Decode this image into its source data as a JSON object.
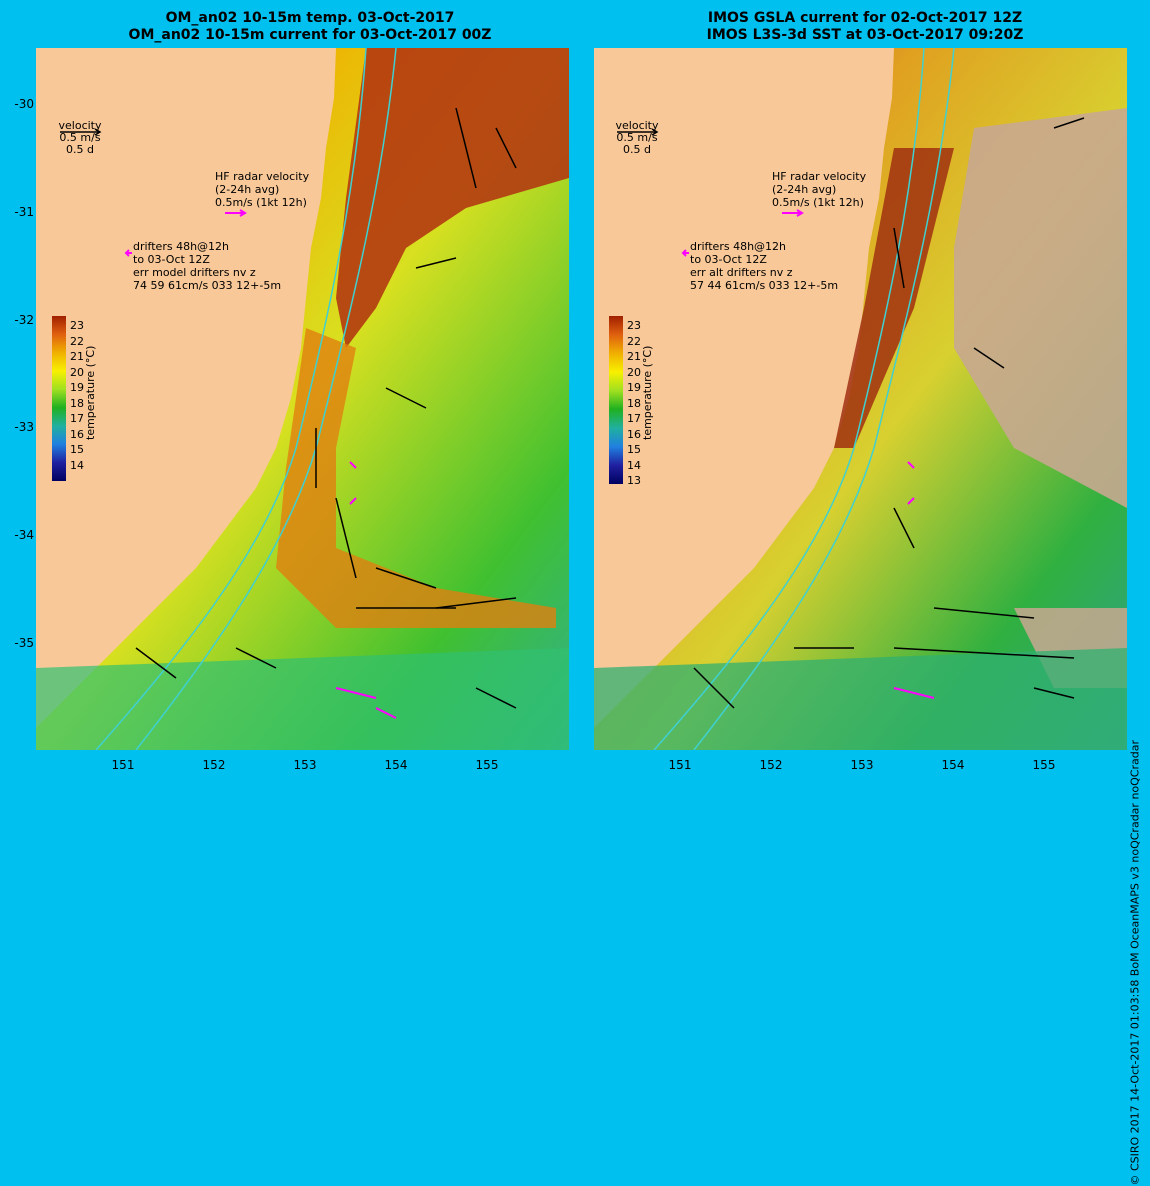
{
  "panels": [
    {
      "title_line1": "OM_an02 10-15m temp. 03-Oct-2017",
      "title_line2": "OM_an02 10-15m current for 03-Oct-2017 00Z",
      "velocity_label": "velocity",
      "velocity_speed": "0.5 m/s",
      "velocity_time": "0.5 d",
      "hf_line1": "HF radar velocity",
      "hf_line2": "(2-24h avg)",
      "hf_line3": "0.5m/s (1kt 12h)",
      "drifter_line1": "drifters 48h@12h",
      "drifter_line2": "to 03-Oct 12Z",
      "drifter_line3": "err model drifters nv z",
      "drifter_line4": "74 59 61cm/s 033 12+-5m",
      "colorbar_ticks": [
        "23",
        "22",
        "21",
        "20",
        "19",
        "18",
        "17",
        "16",
        "15",
        "14"
      ],
      "colorbar_unit": "temperature (°C)"
    },
    {
      "title_line1": "IMOS GSLA current for 02-Oct-2017 12Z",
      "title_line2": "IMOS L3S-3d SST at 03-Oct-2017 09:20Z",
      "velocity_label": "velocity",
      "velocity_speed": "0.5 m/s",
      "velocity_time": "0.5 d",
      "hf_line1": "HF radar velocity",
      "hf_line2": "(2-24h avg)",
      "hf_line3": "0.5m/s (1kt 12h)",
      "drifter_line1": "drifters 48h@12h",
      "drifter_line2": "to 03-Oct 12Z",
      "drifter_line3": "err alt drifters nv z",
      "drifter_line4": "57 44 61cm/s 033 12+-5m",
      "colorbar_ticks": [
        "23",
        "22",
        "21",
        "20",
        "19",
        "18",
        "17",
        "16",
        "15",
        "14",
        "13"
      ],
      "colorbar_unit": "temperature (°C)"
    }
  ],
  "x_ticks": [
    "151",
    "152",
    "153",
    "154",
    "155"
  ],
  "y_ticks": [
    "-30",
    "-31",
    "-32",
    "-33",
    "-34",
    "-35"
  ],
  "credit": "© CSIRO 2017   14-Oct-2017 01:03:58 BoM OceanMAPS v3 noQCradar noQCradar",
  "colors": {
    "background": "#00c0f0",
    "land": "#f8c898",
    "hf_arrow": "#ff00ff",
    "isobath": "#40d0d0",
    "no_data": "#c8a890"
  }
}
